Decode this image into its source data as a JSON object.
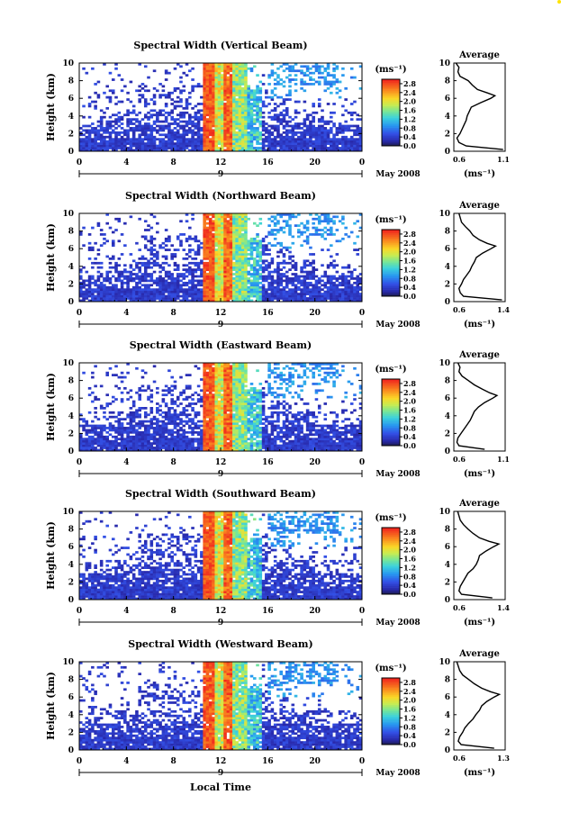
{
  "figure": {
    "common_xlabel": "Local Time",
    "accent_corner": "#ffe400"
  },
  "chart_data": [
    {
      "type": "heatmap",
      "title": "Spectral Width (Vertical Beam)",
      "ylabel": "Height (km)",
      "xlabel": "",
      "ylim": [
        0,
        10
      ],
      "xlim": [
        0,
        24
      ],
      "x_ticks": [
        "0",
        "4",
        "8",
        "12",
        "16",
        "20",
        "0"
      ],
      "y_ticks": [
        "0",
        "2",
        "4",
        "6",
        "8",
        "10"
      ],
      "day_labels": [
        "9"
      ],
      "month_label": "May 2008",
      "colorbar": {
        "unit": "(ms⁻¹)",
        "ticks": [
          "0.0",
          "0.4",
          "0.8",
          "1.2",
          "1.6",
          "2.0",
          "2.4",
          "2.8"
        ],
        "range": [
          0,
          3
        ]
      },
      "profile": {
        "title": "Average",
        "xlabel": "(ms⁻¹)",
        "x_ticks": [
          "0.6",
          "1.1"
        ],
        "xlim": [
          0.6,
          1.1
        ],
        "y_ticks": [
          "0",
          "2",
          "4",
          "6",
          "8",
          "10"
        ],
        "heights": [
          0.2,
          0.6,
          1,
          1.5,
          2,
          2.5,
          3,
          3.5,
          4,
          4.5,
          5,
          5.5,
          6,
          6.3,
          6.6,
          7,
          7.5,
          8,
          8.5,
          9,
          9.5,
          10
        ],
        "values": [
          1.08,
          0.72,
          0.65,
          0.63,
          0.66,
          0.68,
          0.7,
          0.72,
          0.73,
          0.75,
          0.77,
          0.86,
          0.96,
          1.0,
          0.93,
          0.83,
          0.78,
          0.74,
          0.66,
          0.64,
          0.65,
          0.62
        ]
      }
    },
    {
      "type": "heatmap",
      "title": "Spectral Width (Northward Beam)",
      "ylabel": "Height (km)",
      "xlabel": "",
      "ylim": [
        0,
        10
      ],
      "xlim": [
        0,
        24
      ],
      "x_ticks": [
        "0",
        "4",
        "8",
        "12",
        "16",
        "20",
        "0"
      ],
      "y_ticks": [
        "0",
        "2",
        "4",
        "6",
        "8",
        "10"
      ],
      "day_labels": [
        "9"
      ],
      "month_label": "May 2008",
      "colorbar": {
        "unit": "(ms⁻¹)",
        "ticks": [
          "0.0",
          "0.4",
          "0.8",
          "1.2",
          "1.6",
          "2.0",
          "2.4",
          "2.8"
        ],
        "range": [
          0,
          3
        ]
      },
      "profile": {
        "title": "Average",
        "xlabel": "(ms⁻¹)",
        "x_ticks": [
          "0.6",
          "1.4"
        ],
        "xlim": [
          0.6,
          1.4
        ],
        "y_ticks": [
          "0",
          "2",
          "4",
          "6",
          "8",
          "10"
        ],
        "heights": [
          0.2,
          0.6,
          1,
          1.5,
          2,
          2.5,
          3,
          3.5,
          4,
          4.5,
          5,
          5.5,
          6,
          6.3,
          6.6,
          7,
          7.5,
          8,
          8.5,
          9,
          9.5,
          10
        ],
        "values": [
          1.35,
          0.75,
          0.7,
          0.68,
          0.72,
          0.75,
          0.8,
          0.85,
          0.88,
          0.92,
          0.95,
          1.05,
          1.18,
          1.25,
          1.12,
          1.0,
          0.9,
          0.85,
          0.78,
          0.72,
          0.7,
          0.68
        ]
      }
    },
    {
      "type": "heatmap",
      "title": "Spectral Width (Eastward Beam)",
      "ylabel": "Height (km)",
      "xlabel": "",
      "ylim": [
        0,
        10
      ],
      "xlim": [
        0,
        24
      ],
      "x_ticks": [
        "0",
        "4",
        "8",
        "12",
        "16",
        "20",
        "0"
      ],
      "y_ticks": [
        "0",
        "2",
        "4",
        "6",
        "8",
        "10"
      ],
      "day_labels": [
        "9"
      ],
      "month_label": "May 2008",
      "colorbar": {
        "unit": "(ms⁻¹)",
        "ticks": [
          "0.0",
          "0.4",
          "0.8",
          "1.2",
          "1.6",
          "2.0",
          "2.4",
          "2.8"
        ],
        "range": [
          0,
          3
        ]
      },
      "profile": {
        "title": "Average",
        "xlabel": "(ms⁻¹)",
        "x_ticks": [
          "0.6",
          "1.1"
        ],
        "xlim": [
          0.6,
          1.1
        ],
        "y_ticks": [
          "0",
          "2",
          "4",
          "6",
          "8",
          "10"
        ],
        "heights": [
          0.2,
          0.6,
          1,
          1.5,
          2,
          2.5,
          3,
          3.5,
          4,
          4.5,
          5,
          5.5,
          6,
          6.3,
          6.6,
          7,
          7.5,
          8,
          8.5,
          9,
          9.5,
          10
        ],
        "values": [
          0.9,
          0.65,
          0.63,
          0.64,
          0.67,
          0.7,
          0.73,
          0.76,
          0.78,
          0.8,
          0.84,
          0.9,
          0.98,
          1.02,
          0.95,
          0.88,
          0.8,
          0.74,
          0.68,
          0.65,
          0.66,
          0.64
        ]
      }
    },
    {
      "type": "heatmap",
      "title": "Spectral Width (Southward Beam)",
      "ylabel": "Height (km)",
      "xlabel": "",
      "ylim": [
        0,
        10
      ],
      "xlim": [
        0,
        24
      ],
      "x_ticks": [
        "0",
        "4",
        "8",
        "12",
        "16",
        "20",
        "0"
      ],
      "y_ticks": [
        "0",
        "2",
        "4",
        "6",
        "8",
        "10"
      ],
      "day_labels": [
        "9"
      ],
      "month_label": "May 2008",
      "colorbar": {
        "unit": "(ms⁻¹)",
        "ticks": [
          "0.0",
          "0.4",
          "0.8",
          "1.2",
          "1.6",
          "2.0",
          "2.4",
          "2.8"
        ],
        "range": [
          0,
          3
        ]
      },
      "profile": {
        "title": "Average",
        "xlabel": "(ms⁻¹)",
        "x_ticks": [
          "0.6",
          "1.4"
        ],
        "xlim": [
          0.6,
          1.4
        ],
        "y_ticks": [
          "0",
          "2",
          "4",
          "6",
          "8",
          "10"
        ],
        "heights": [
          0.2,
          0.6,
          1,
          1.5,
          2,
          2.5,
          3,
          3.5,
          4,
          4.5,
          5,
          5.5,
          6,
          6.3,
          6.6,
          7,
          7.5,
          8,
          8.5,
          9,
          9.5,
          10
        ],
        "values": [
          1.2,
          0.72,
          0.68,
          0.7,
          0.74,
          0.78,
          0.82,
          0.9,
          0.95,
          0.98,
          1.0,
          1.1,
          1.22,
          1.3,
          1.15,
          1.0,
          0.9,
          0.82,
          0.75,
          0.7,
          0.68,
          0.66
        ]
      }
    },
    {
      "type": "heatmap",
      "title": "Spectral Width (Westward Beam)",
      "ylabel": "Height (km)",
      "xlabel": "Local Time",
      "ylim": [
        0,
        10
      ],
      "xlim": [
        0,
        24
      ],
      "x_ticks": [
        "0",
        "4",
        "8",
        "12",
        "16",
        "20",
        "0"
      ],
      "y_ticks": [
        "0",
        "2",
        "4",
        "6",
        "8",
        "10"
      ],
      "day_labels": [
        "9"
      ],
      "month_label": "May 2008",
      "colorbar": {
        "unit": "(ms⁻¹)",
        "ticks": [
          "0.0",
          "0.4",
          "0.8",
          "1.2",
          "1.6",
          "2.0",
          "2.4",
          "2.8"
        ],
        "range": [
          0,
          3
        ]
      },
      "profile": {
        "title": "Average",
        "xlabel": "(ms⁻¹)",
        "x_ticks": [
          "0.6",
          "1.3"
        ],
        "xlim": [
          0.6,
          1.3
        ],
        "y_ticks": [
          "0",
          "2",
          "4",
          "6",
          "8",
          "10"
        ],
        "heights": [
          0.2,
          0.6,
          1,
          1.5,
          2,
          2.5,
          3,
          3.5,
          4,
          4.5,
          5,
          5.5,
          6,
          6.3,
          6.6,
          7,
          7.5,
          8,
          8.5,
          9,
          9.5,
          10
        ],
        "values": [
          1.15,
          0.7,
          0.66,
          0.68,
          0.72,
          0.75,
          0.8,
          0.86,
          0.9,
          0.95,
          0.98,
          1.05,
          1.15,
          1.22,
          1.1,
          0.98,
          0.88,
          0.8,
          0.72,
          0.68,
          0.66,
          0.64
        ]
      }
    }
  ]
}
